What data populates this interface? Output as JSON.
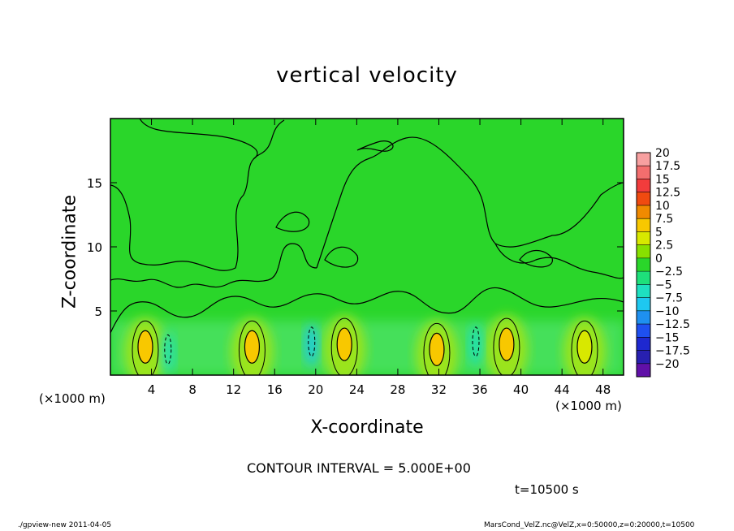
{
  "chart_data": {
    "type": "heatmap",
    "title": "vertical velocity",
    "xlabel": "X-coordinate",
    "ylabel": "Z-coordinate",
    "x_unit_label": "(×1000 m)",
    "y_unit_label": "(×1000 m)",
    "xlim": [
      0,
      50
    ],
    "ylim": [
      0,
      20
    ],
    "xticks": [
      4,
      8,
      12,
      16,
      20,
      24,
      28,
      32,
      36,
      40,
      44,
      48
    ],
    "yticks": [
      5,
      10,
      15
    ],
    "contour_interval_text": "CONTOUR INTERVAL = 5.000E+00",
    "time_text": "t=10500 s",
    "colorbar": {
      "levels": [
        "20",
        "17.5",
        "15",
        "12.5",
        "10",
        "7.5",
        "5",
        "2.5",
        "0",
        "−2.5",
        "−5",
        "−7.5",
        "−10",
        "−12.5",
        "−15",
        "−17.5",
        "−20"
      ],
      "colors": [
        "#f7a0a0",
        "#f36e6e",
        "#f23c3c",
        "#f04a10",
        "#f08a00",
        "#f8c800",
        "#d8e800",
        "#88e000",
        "#2ad62a",
        "#1ee07a",
        "#1ee0c0",
        "#1ec8f0",
        "#1e90f0",
        "#1e50f0",
        "#1e28d0",
        "#2820b0",
        "#6010a8"
      ]
    },
    "updrafts": [
      {
        "x": 3.4,
        "z": 2.2,
        "w": 7.5
      },
      {
        "x": 13.8,
        "z": 2.2,
        "w": 7.5
      },
      {
        "x": 22.8,
        "z": 2.4,
        "w": 7.5
      },
      {
        "x": 31.8,
        "z": 2.0,
        "w": 7.5
      },
      {
        "x": 38.6,
        "z": 2.4,
        "w": 7.5
      },
      {
        "x": 46.2,
        "z": 2.2,
        "w": 5
      }
    ],
    "downdrafts": [
      {
        "x": 5.6,
        "z": 2.0,
        "w": -5
      },
      {
        "x": 19.6,
        "z": 2.6,
        "w": -7.5
      },
      {
        "x": 35.6,
        "z": 2.6,
        "w": -5
      }
    ]
  },
  "footer": {
    "left": "./gpview-new  2011-04-05",
    "right": "MarsCond_VelZ.nc@VelZ,x=0:50000,z=0:20000,t=10500"
  }
}
